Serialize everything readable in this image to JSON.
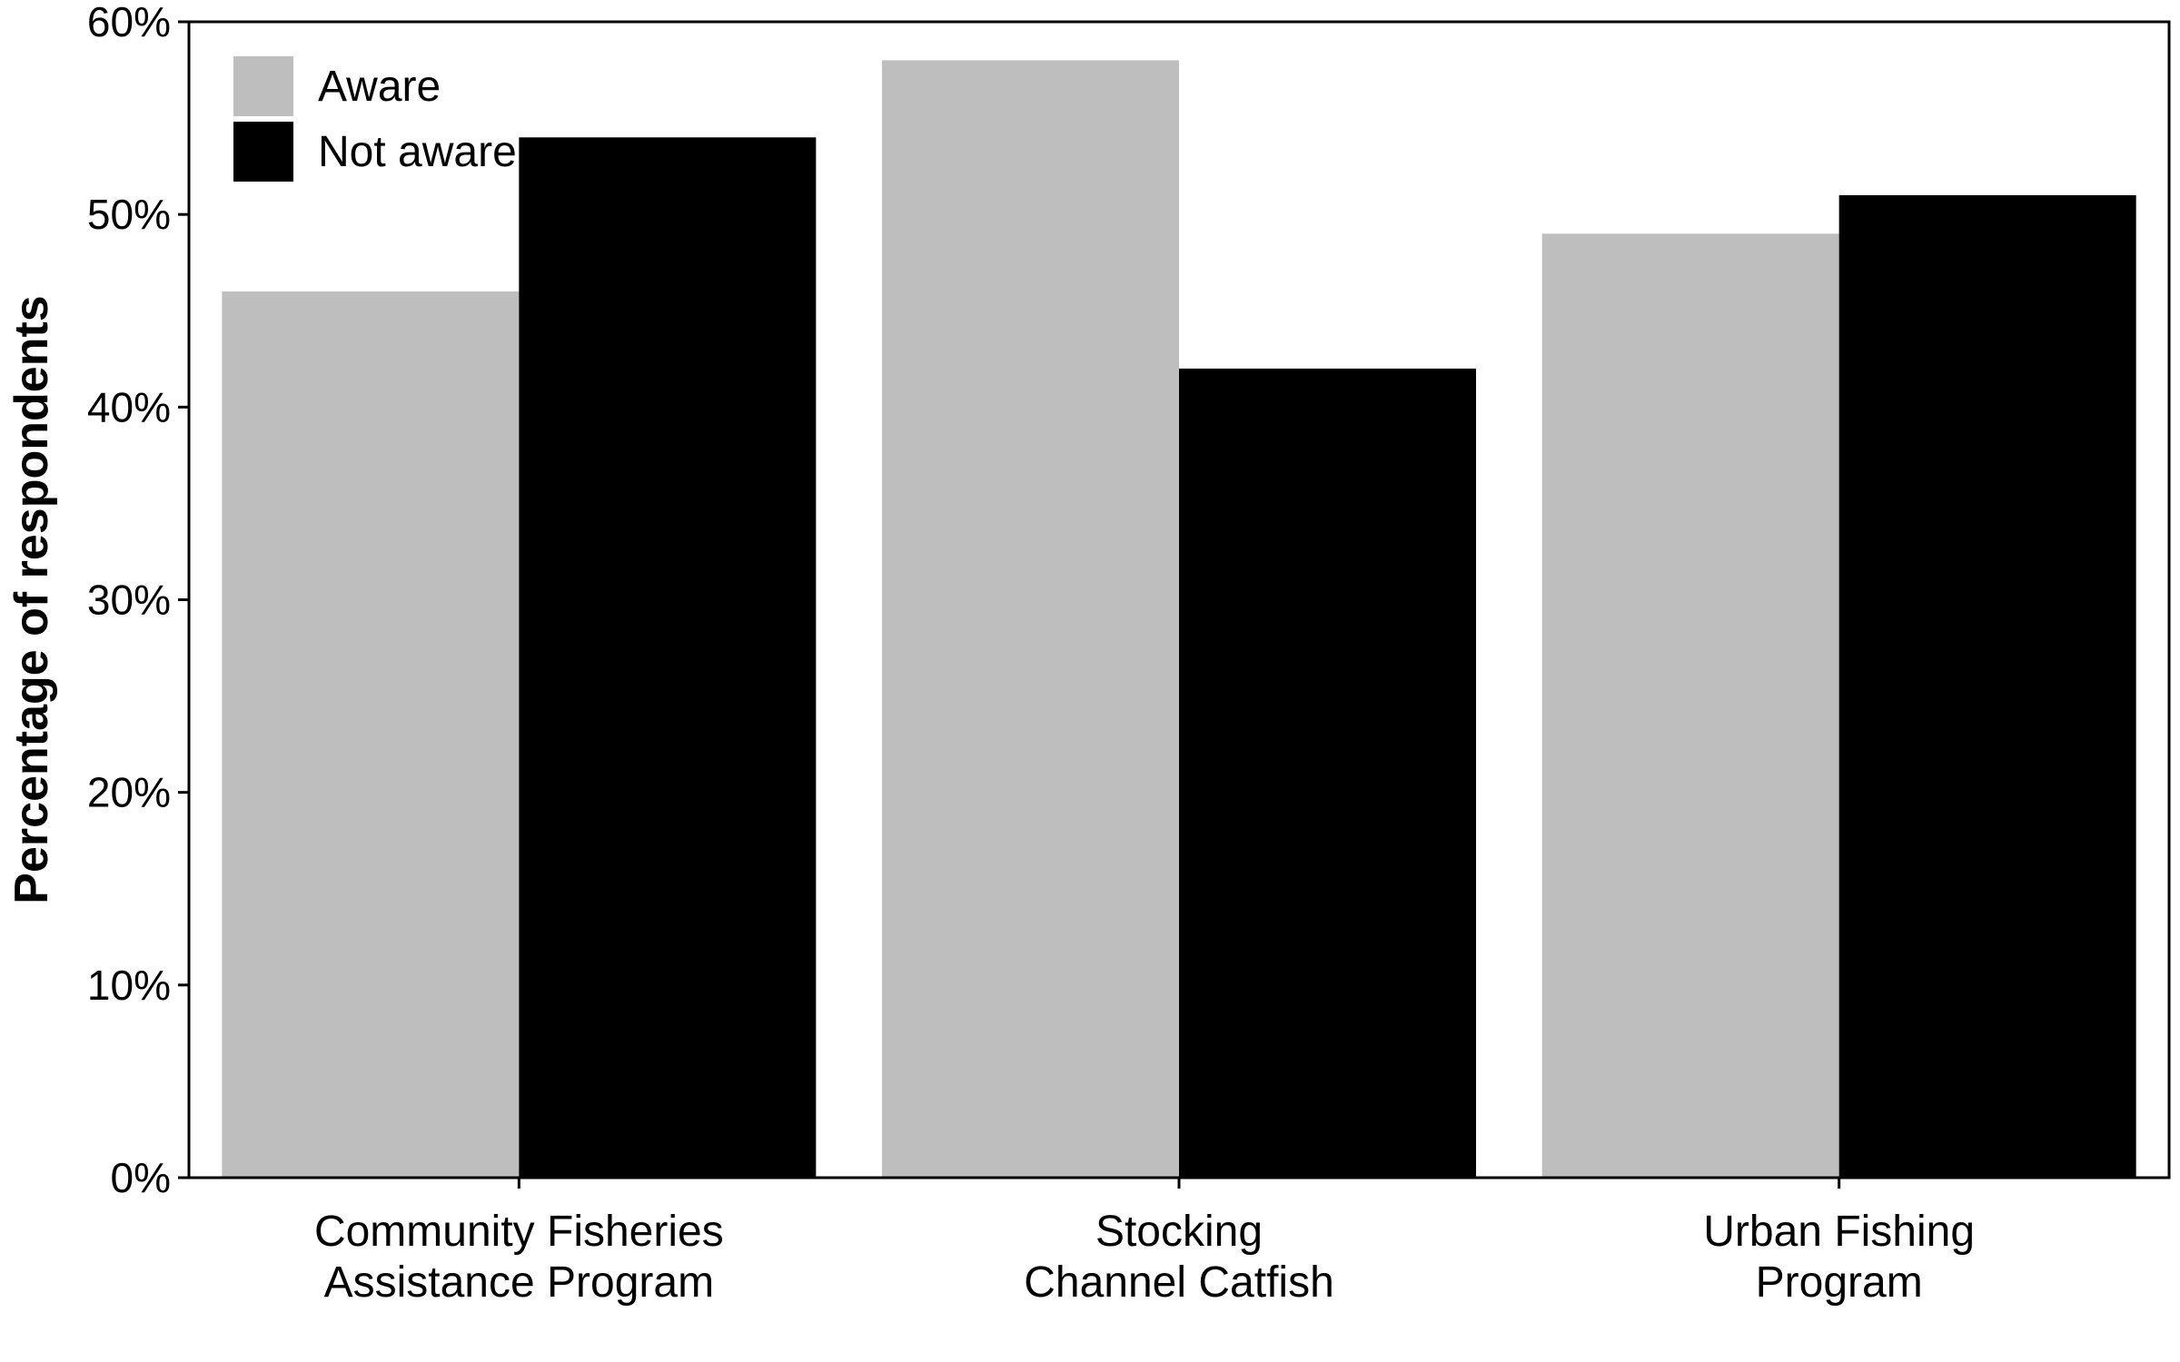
{
  "chart_data": {
    "type": "bar",
    "title": "",
    "xlabel": "",
    "ylabel": "Percentage of respondents",
    "ylim": [
      0,
      60
    ],
    "yticks": [
      0,
      10,
      20,
      30,
      40,
      50,
      60
    ],
    "ytick_labels": [
      "0%",
      "10%",
      "20%",
      "30%",
      "40%",
      "50%",
      "60%"
    ],
    "categories": [
      [
        "Community Fisheries",
        "Assistance Program"
      ],
      [
        "Stocking",
        "Channel Catfish"
      ],
      [
        "Urban Fishing",
        "Program"
      ]
    ],
    "series": [
      {
        "name": "Aware",
        "color": "#bebebe",
        "values": [
          46,
          58,
          49
        ]
      },
      {
        "name": "Not aware",
        "color": "#000000",
        "values": [
          54,
          42,
          51
        ]
      }
    ],
    "legend_position": "top-left",
    "grid": false
  }
}
